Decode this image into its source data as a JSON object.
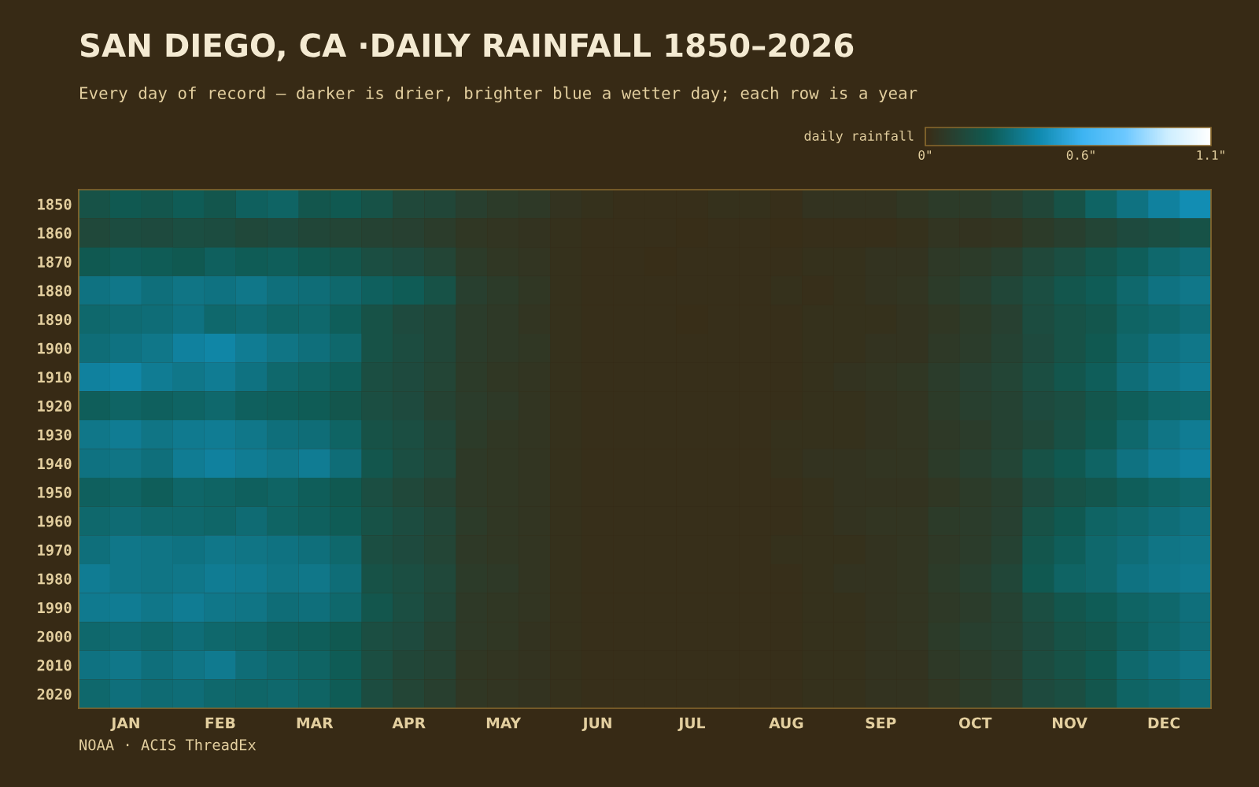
{
  "chart_data": {
    "type": "heatmap",
    "title": "SAN DIEGO, CA ·DAILY RAINFALL 1850–2026",
    "subtitle": "Every day of record — darker is drier, brighter blue a wetter day; each row is a year",
    "clabel": "daily rainfall",
    "clim": [
      0,
      1.1
    ],
    "cticks": [
      {
        "value": 0,
        "label": "0\""
      },
      {
        "value": 0.6,
        "label": "0.6\""
      },
      {
        "value": 1.1,
        "label": "1.1\""
      }
    ],
    "categories": [
      null,
      "JAN",
      null,
      null,
      "FEB",
      null,
      null,
      "MAR",
      null,
      null,
      "APR",
      null,
      null,
      "MAY",
      null,
      null,
      "JUN",
      null,
      null,
      "JUL",
      null,
      null,
      "AUG",
      null,
      null,
      "SEP",
      null,
      null,
      "OCT",
      null,
      null,
      "NOV",
      null,
      null,
      "DEC",
      null
    ],
    "y_categories": [
      "1850",
      "1860",
      "1870",
      "1880",
      "1890",
      "1900",
      "1910",
      "1920",
      "1930",
      "1940",
      "1950",
      "1960",
      "1970",
      "1980",
      "1990",
      "2000",
      "2010",
      "2020"
    ],
    "cells": [
      [
        0.2,
        0.24,
        0.22,
        0.25,
        0.22,
        0.27,
        0.28,
        0.22,
        0.24,
        0.2,
        0.15,
        0.14,
        0.1,
        0.08,
        0.07,
        0.04,
        0.03,
        0.02,
        0.02,
        0.02,
        0.03,
        0.03,
        0.02,
        0.04,
        0.04,
        0.04,
        0.06,
        0.08,
        0.08,
        0.1,
        0.14,
        0.2,
        0.28,
        0.34,
        0.4,
        0.45
      ],
      [
        0.15,
        0.17,
        0.16,
        0.18,
        0.17,
        0.15,
        0.16,
        0.14,
        0.13,
        0.12,
        0.11,
        0.09,
        0.06,
        0.05,
        0.04,
        0.03,
        0.02,
        0.02,
        0.02,
        0.01,
        0.02,
        0.02,
        0.01,
        0.02,
        0.02,
        0.02,
        0.03,
        0.05,
        0.04,
        0.05,
        0.08,
        0.1,
        0.13,
        0.16,
        0.18,
        0.2
      ],
      [
        0.24,
        0.26,
        0.25,
        0.24,
        0.27,
        0.25,
        0.26,
        0.24,
        0.22,
        0.18,
        0.16,
        0.13,
        0.08,
        0.06,
        0.05,
        0.03,
        0.02,
        0.02,
        0.01,
        0.02,
        0.02,
        0.02,
        0.02,
        0.03,
        0.03,
        0.04,
        0.04,
        0.07,
        0.08,
        0.1,
        0.15,
        0.18,
        0.22,
        0.26,
        0.3,
        0.32
      ],
      [
        0.34,
        0.36,
        0.33,
        0.35,
        0.34,
        0.36,
        0.33,
        0.32,
        0.3,
        0.27,
        0.25,
        0.2,
        0.1,
        0.08,
        0.06,
        0.03,
        0.02,
        0.02,
        0.02,
        0.02,
        0.02,
        0.02,
        0.03,
        0.02,
        0.03,
        0.04,
        0.05,
        0.08,
        0.1,
        0.14,
        0.18,
        0.22,
        0.25,
        0.3,
        0.34,
        0.36
      ],
      [
        0.3,
        0.31,
        0.32,
        0.34,
        0.3,
        0.31,
        0.29,
        0.3,
        0.26,
        0.2,
        0.16,
        0.14,
        0.09,
        0.07,
        0.05,
        0.03,
        0.02,
        0.02,
        0.02,
        0.01,
        0.02,
        0.02,
        0.02,
        0.03,
        0.03,
        0.03,
        0.04,
        0.06,
        0.08,
        0.11,
        0.17,
        0.2,
        0.22,
        0.28,
        0.3,
        0.32
      ],
      [
        0.32,
        0.34,
        0.36,
        0.4,
        0.42,
        0.38,
        0.35,
        0.33,
        0.3,
        0.2,
        0.17,
        0.14,
        0.09,
        0.07,
        0.06,
        0.03,
        0.02,
        0.02,
        0.02,
        0.02,
        0.02,
        0.02,
        0.02,
        0.03,
        0.03,
        0.04,
        0.04,
        0.07,
        0.09,
        0.12,
        0.16,
        0.2,
        0.24,
        0.3,
        0.34,
        0.36
      ],
      [
        0.4,
        0.42,
        0.38,
        0.36,
        0.38,
        0.34,
        0.3,
        0.28,
        0.26,
        0.18,
        0.16,
        0.13,
        0.08,
        0.06,
        0.05,
        0.03,
        0.02,
        0.02,
        0.02,
        0.02,
        0.02,
        0.02,
        0.02,
        0.03,
        0.04,
        0.05,
        0.06,
        0.09,
        0.11,
        0.13,
        0.18,
        0.22,
        0.26,
        0.32,
        0.36,
        0.38
      ],
      [
        0.26,
        0.28,
        0.27,
        0.28,
        0.3,
        0.27,
        0.26,
        0.25,
        0.22,
        0.18,
        0.16,
        0.12,
        0.09,
        0.07,
        0.05,
        0.03,
        0.02,
        0.02,
        0.02,
        0.02,
        0.02,
        0.02,
        0.02,
        0.03,
        0.03,
        0.04,
        0.05,
        0.08,
        0.1,
        0.12,
        0.16,
        0.18,
        0.22,
        0.26,
        0.29,
        0.3
      ],
      [
        0.36,
        0.38,
        0.35,
        0.37,
        0.38,
        0.36,
        0.33,
        0.32,
        0.28,
        0.2,
        0.18,
        0.14,
        0.08,
        0.06,
        0.05,
        0.03,
        0.02,
        0.02,
        0.02,
        0.02,
        0.02,
        0.02,
        0.03,
        0.03,
        0.03,
        0.04,
        0.05,
        0.07,
        0.09,
        0.12,
        0.15,
        0.19,
        0.24,
        0.3,
        0.35,
        0.38
      ],
      [
        0.34,
        0.35,
        0.33,
        0.38,
        0.4,
        0.38,
        0.36,
        0.38,
        0.32,
        0.22,
        0.18,
        0.15,
        0.07,
        0.06,
        0.05,
        0.03,
        0.02,
        0.02,
        0.02,
        0.02,
        0.02,
        0.02,
        0.03,
        0.04,
        0.04,
        0.05,
        0.05,
        0.08,
        0.1,
        0.13,
        0.2,
        0.24,
        0.28,
        0.34,
        0.38,
        0.4
      ],
      [
        0.27,
        0.28,
        0.26,
        0.29,
        0.28,
        0.27,
        0.28,
        0.26,
        0.24,
        0.18,
        0.15,
        0.12,
        0.07,
        0.06,
        0.05,
        0.03,
        0.02,
        0.02,
        0.02,
        0.02,
        0.02,
        0.02,
        0.02,
        0.03,
        0.04,
        0.04,
        0.04,
        0.06,
        0.08,
        0.1,
        0.16,
        0.2,
        0.22,
        0.26,
        0.28,
        0.3
      ],
      [
        0.3,
        0.31,
        0.3,
        0.3,
        0.29,
        0.31,
        0.28,
        0.27,
        0.25,
        0.2,
        0.17,
        0.14,
        0.08,
        0.06,
        0.05,
        0.03,
        0.02,
        0.02,
        0.02,
        0.02,
        0.02,
        0.02,
        0.02,
        0.03,
        0.04,
        0.05,
        0.05,
        0.08,
        0.09,
        0.11,
        0.2,
        0.24,
        0.28,
        0.3,
        0.32,
        0.34
      ],
      [
        0.33,
        0.36,
        0.35,
        0.34,
        0.36,
        0.35,
        0.34,
        0.33,
        0.3,
        0.18,
        0.16,
        0.13,
        0.07,
        0.06,
        0.05,
        0.03,
        0.02,
        0.02,
        0.02,
        0.02,
        0.02,
        0.02,
        0.03,
        0.03,
        0.03,
        0.04,
        0.05,
        0.07,
        0.09,
        0.12,
        0.22,
        0.26,
        0.3,
        0.32,
        0.35,
        0.36
      ],
      [
        0.38,
        0.36,
        0.35,
        0.36,
        0.38,
        0.37,
        0.35,
        0.36,
        0.32,
        0.2,
        0.18,
        0.15,
        0.08,
        0.07,
        0.05,
        0.03,
        0.02,
        0.02,
        0.02,
        0.02,
        0.02,
        0.02,
        0.02,
        0.03,
        0.04,
        0.04,
        0.05,
        0.08,
        0.1,
        0.14,
        0.24,
        0.28,
        0.3,
        0.34,
        0.36,
        0.37
      ],
      [
        0.37,
        0.38,
        0.36,
        0.38,
        0.36,
        0.35,
        0.32,
        0.33,
        0.3,
        0.22,
        0.18,
        0.14,
        0.07,
        0.06,
        0.05,
        0.03,
        0.02,
        0.02,
        0.02,
        0.02,
        0.02,
        0.02,
        0.02,
        0.03,
        0.03,
        0.04,
        0.05,
        0.07,
        0.09,
        0.12,
        0.18,
        0.22,
        0.25,
        0.28,
        0.3,
        0.33
      ],
      [
        0.3,
        0.31,
        0.3,
        0.32,
        0.3,
        0.29,
        0.27,
        0.26,
        0.24,
        0.18,
        0.16,
        0.12,
        0.07,
        0.06,
        0.04,
        0.03,
        0.02,
        0.02,
        0.02,
        0.02,
        0.02,
        0.02,
        0.02,
        0.03,
        0.03,
        0.04,
        0.05,
        0.08,
        0.1,
        0.12,
        0.16,
        0.2,
        0.22,
        0.27,
        0.3,
        0.32
      ],
      [
        0.34,
        0.36,
        0.33,
        0.35,
        0.37,
        0.32,
        0.3,
        0.28,
        0.25,
        0.18,
        0.14,
        0.12,
        0.06,
        0.05,
        0.04,
        0.03,
        0.02,
        0.02,
        0.02,
        0.02,
        0.02,
        0.02,
        0.02,
        0.03,
        0.03,
        0.04,
        0.04,
        0.07,
        0.09,
        0.11,
        0.17,
        0.2,
        0.24,
        0.3,
        0.33,
        0.35
      ],
      [
        0.3,
        0.33,
        0.31,
        0.32,
        0.3,
        0.29,
        0.3,
        0.28,
        0.25,
        0.17,
        0.13,
        0.1,
        0.06,
        0.05,
        0.04,
        0.03,
        0.02,
        0.02,
        0.02,
        0.02,
        0.02,
        0.02,
        0.02,
        0.03,
        0.03,
        0.04,
        0.04,
        0.06,
        0.08,
        0.1,
        0.16,
        0.18,
        0.22,
        0.28,
        0.3,
        0.32
      ]
    ],
    "annotations": [
      "NOAA · ACIS ThreadEx"
    ]
  }
}
